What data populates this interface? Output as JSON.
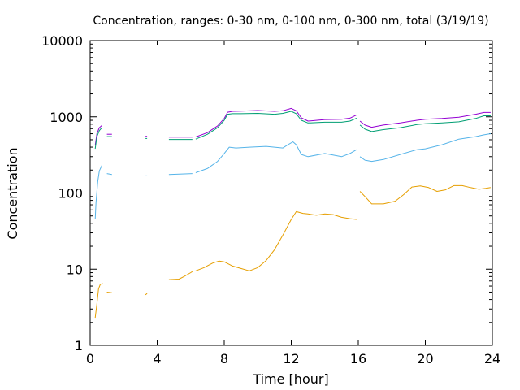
{
  "chart_data": {
    "type": "line",
    "title": "Concentration, ranges: 0-30 nm, 0-100 nm, 0-300 nm, total (3/19/19)",
    "xlabel": "Time [hour]",
    "ylabel": "Concentration",
    "xlim": [
      0,
      24
    ],
    "ylim": [
      1,
      10000
    ],
    "yscale": "log",
    "grid": false,
    "legend": "none",
    "x_ticks": [
      "0",
      "4",
      "8",
      "12",
      "16",
      "20",
      "24"
    ],
    "y_ticks": [
      "1",
      "10",
      "100",
      "1000",
      "10000"
    ],
    "series": [
      {
        "color": "#9400d3",
        "segments": [
          [
            [
              0.3,
              420
            ],
            [
              0.4,
              600
            ],
            [
              0.55,
              720
            ],
            [
              0.7,
              770
            ]
          ],
          [
            [
              1.0,
              590
            ],
            [
              1.3,
              590
            ]
          ],
          [
            [
              3.3,
              555
            ],
            [
              3.4,
              555
            ]
          ],
          [
            [
              4.7,
              540
            ],
            [
              6.1,
              540
            ]
          ],
          [
            [
              6.3,
              545
            ],
            [
              7.0,
              620
            ],
            [
              7.6,
              760
            ],
            [
              8.0,
              950
            ],
            [
              8.2,
              1150
            ],
            [
              8.5,
              1180
            ],
            [
              9.0,
              1190
            ],
            [
              10.0,
              1210
            ],
            [
              11.0,
              1180
            ],
            [
              11.5,
              1200
            ],
            [
              12.0,
              1290
            ],
            [
              12.3,
              1200
            ],
            [
              12.6,
              970
            ],
            [
              13.0,
              880
            ],
            [
              14.0,
              920
            ],
            [
              15.0,
              930
            ],
            [
              15.5,
              960
            ],
            [
              15.9,
              1060
            ]
          ],
          [
            [
              16.1,
              880
            ],
            [
              16.4,
              780
            ],
            [
              16.8,
              730
            ],
            [
              17.5,
              780
            ],
            [
              18.5,
              830
            ],
            [
              19.5,
              900
            ],
            [
              20.0,
              930
            ],
            [
              21.0,
              950
            ],
            [
              22.0,
              990
            ],
            [
              23.0,
              1080
            ],
            [
              23.5,
              1140
            ],
            [
              23.9,
              1140
            ]
          ]
        ]
      },
      {
        "color": "#009e73",
        "segments": [
          [
            [
              0.3,
              380
            ],
            [
              0.4,
              550
            ],
            [
              0.55,
              660
            ],
            [
              0.7,
              720
            ]
          ],
          [
            [
              1.0,
              550
            ],
            [
              1.3,
              550
            ]
          ],
          [
            [
              3.3,
              520
            ],
            [
              3.4,
              520
            ]
          ],
          [
            [
              4.7,
              505
            ],
            [
              6.1,
              505
            ]
          ],
          [
            [
              6.3,
              510
            ],
            [
              7.0,
              590
            ],
            [
              7.6,
              720
            ],
            [
              8.0,
              900
            ],
            [
              8.2,
              1080
            ],
            [
              8.5,
              1100
            ],
            [
              9.0,
              1100
            ],
            [
              10.0,
              1110
            ],
            [
              11.0,
              1080
            ],
            [
              11.5,
              1110
            ],
            [
              12.0,
              1180
            ],
            [
              12.3,
              1100
            ],
            [
              12.6,
              900
            ],
            [
              13.0,
              830
            ],
            [
              14.0,
              850
            ],
            [
              15.0,
              850
            ],
            [
              15.5,
              880
            ],
            [
              15.9,
              960
            ]
          ],
          [
            [
              16.1,
              780
            ],
            [
              16.4,
              690
            ],
            [
              16.8,
              640
            ],
            [
              17.5,
              680
            ],
            [
              18.5,
              720
            ],
            [
              19.5,
              790
            ],
            [
              20.0,
              810
            ],
            [
              21.0,
              830
            ],
            [
              22.0,
              860
            ],
            [
              23.0,
              950
            ],
            [
              23.5,
              1030
            ],
            [
              23.9,
              1030
            ]
          ]
        ]
      },
      {
        "color": "#56b4e9",
        "segments": [
          [
            [
              0.3,
              45
            ],
            [
              0.35,
              75
            ],
            [
              0.45,
              140
            ],
            [
              0.55,
              195
            ],
            [
              0.7,
              230
            ]
          ],
          [
            [
              1.0,
              180
            ],
            [
              1.3,
              175
            ]
          ],
          [
            [
              3.3,
              168
            ],
            [
              3.4,
              168
            ]
          ],
          [
            [
              4.7,
              175
            ],
            [
              6.1,
              180
            ]
          ],
          [
            [
              6.3,
              185
            ],
            [
              7.0,
              210
            ],
            [
              7.6,
              260
            ],
            [
              8.0,
              330
            ],
            [
              8.3,
              400
            ],
            [
              8.7,
              390
            ],
            [
              9.5,
              400
            ],
            [
              10.5,
              410
            ],
            [
              11.5,
              390
            ],
            [
              11.8,
              430
            ],
            [
              12.1,
              470
            ],
            [
              12.3,
              430
            ],
            [
              12.6,
              320
            ],
            [
              13.0,
              300
            ],
            [
              14.0,
              330
            ],
            [
              15.0,
              300
            ],
            [
              15.5,
              330
            ],
            [
              15.9,
              370
            ]
          ],
          [
            [
              16.1,
              300
            ],
            [
              16.4,
              270
            ],
            [
              16.8,
              260
            ],
            [
              17.5,
              275
            ],
            [
              18.5,
              320
            ],
            [
              19.5,
              370
            ],
            [
              20.0,
              380
            ],
            [
              21.0,
              430
            ],
            [
              22.0,
              510
            ],
            [
              23.0,
              550
            ],
            [
              23.5,
              580
            ],
            [
              23.9,
              600
            ]
          ]
        ]
      },
      {
        "color": "#e69f00",
        "segments": [
          [
            [
              0.3,
              2.3
            ],
            [
              0.4,
              3.5
            ],
            [
              0.5,
              5.5
            ],
            [
              0.6,
              6.3
            ],
            [
              0.75,
              6.5
            ]
          ],
          [
            [
              1.0,
              5.0
            ],
            [
              1.3,
              4.9
            ]
          ],
          [
            [
              3.3,
              4.6
            ],
            [
              3.4,
              4.8
            ]
          ],
          [
            [
              4.7,
              7.3
            ],
            [
              5.3,
              7.4
            ],
            [
              5.6,
              8.0
            ],
            [
              6.0,
              9.0
            ],
            [
              6.1,
              9.3
            ]
          ],
          [
            [
              6.3,
              9.5
            ],
            [
              6.8,
              10.5
            ],
            [
              7.3,
              12.0
            ],
            [
              7.7,
              12.8
            ],
            [
              8.0,
              12.5
            ],
            [
              8.5,
              11.0
            ],
            [
              9.0,
              10.2
            ],
            [
              9.5,
              9.5
            ],
            [
              10.0,
              10.5
            ],
            [
              10.5,
              13.0
            ],
            [
              11.0,
              18.0
            ],
            [
              11.5,
              28.0
            ],
            [
              12.0,
              45.0
            ],
            [
              12.3,
              57.0
            ],
            [
              12.7,
              54.0
            ],
            [
              13.0,
              53.0
            ],
            [
              13.5,
              51.0
            ],
            [
              14.0,
              53.0
            ],
            [
              14.5,
              52.0
            ],
            [
              15.0,
              48.0
            ],
            [
              15.5,
              46.0
            ],
            [
              15.9,
              45.0
            ]
          ],
          [
            [
              16.1,
              105.0
            ],
            [
              16.4,
              90.0
            ],
            [
              16.8,
              72.0
            ],
            [
              17.5,
              72.0
            ],
            [
              18.2,
              78.0
            ],
            [
              18.7,
              95.0
            ],
            [
              19.2,
              120.0
            ],
            [
              19.7,
              124.0
            ],
            [
              20.2,
              118.0
            ],
            [
              20.7,
              105.0
            ],
            [
              21.2,
              110.0
            ],
            [
              21.7,
              125.0
            ],
            [
              22.2,
              125.0
            ],
            [
              22.7,
              118.0
            ],
            [
              23.2,
              112.0
            ],
            [
              23.6,
              115.0
            ],
            [
              23.9,
              118.0
            ]
          ]
        ]
      }
    ]
  }
}
